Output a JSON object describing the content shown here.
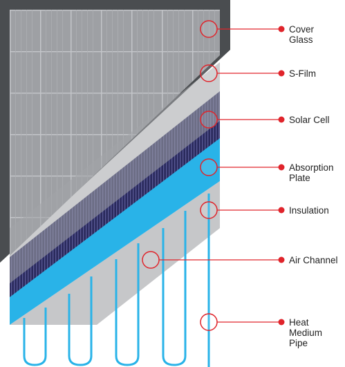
{
  "colors": {
    "frame": "#4a4d50",
    "cover_glass": "#9ea0a4",
    "s_film": "#8f9196",
    "solar_cell": "#2a2a5c",
    "absorption_plate": "#29b3e8",
    "insulation": "#c6c7c9",
    "pipe": "#29b3e8",
    "callout_ring": "#e0242b",
    "callout_dot": "#e0242b"
  },
  "callouts": [
    {
      "id": "cover-glass",
      "lines": [
        "Cover",
        "Glass"
      ]
    },
    {
      "id": "s-film",
      "lines": [
        "S-Film"
      ]
    },
    {
      "id": "solar-cell",
      "lines": [
        "Solar Cell"
      ]
    },
    {
      "id": "absorption-plate",
      "lines": [
        "Absorption",
        "Plate"
      ]
    },
    {
      "id": "insulation",
      "lines": [
        "Insulation"
      ]
    },
    {
      "id": "air-channel",
      "lines": [
        "Air Channel"
      ]
    },
    {
      "id": "heat-medium-pipe",
      "lines": [
        "Heat",
        "Medium",
        "Pipe"
      ]
    }
  ]
}
